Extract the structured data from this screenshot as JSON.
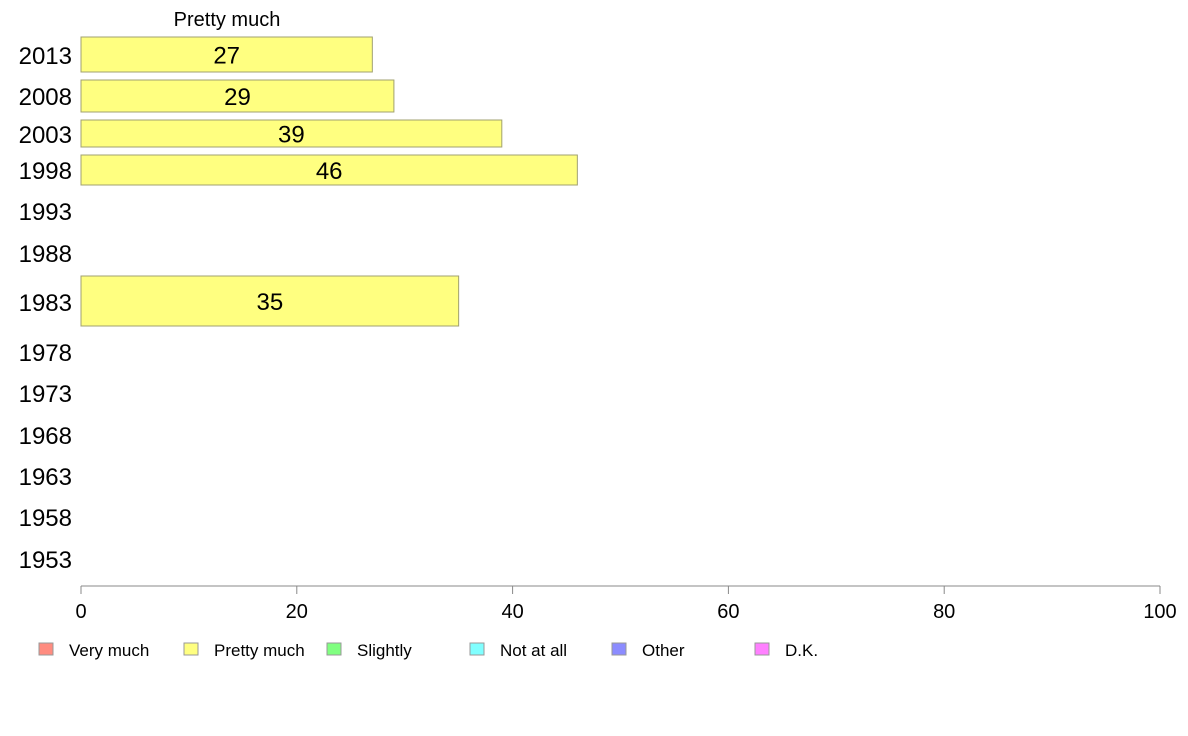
{
  "chart_data": {
    "type": "bar",
    "orientation": "horizontal",
    "title": "",
    "xlabel": "",
    "ylabel": "",
    "xlim": [
      0,
      100
    ],
    "x_ticks": [
      0,
      20,
      40,
      60,
      80,
      100
    ],
    "categories": [
      "2013",
      "2008",
      "2003",
      "1998",
      "1993",
      "1988",
      "1983",
      "1978",
      "1973",
      "1968",
      "1963",
      "1958",
      "1953"
    ],
    "series": [
      {
        "name": "Pretty much",
        "color": "#ffff80",
        "values": [
          27,
          29,
          39,
          46,
          null,
          null,
          35,
          null,
          null,
          null,
          null,
          null,
          null
        ]
      }
    ],
    "legend": {
      "placement": "bottom",
      "items": [
        {
          "label": "Very much",
          "color": "#ff8c80"
        },
        {
          "label": "Pretty much",
          "color": "#ffff80"
        },
        {
          "label": "Slightly",
          "color": "#80ff80"
        },
        {
          "label": "Not at all",
          "color": "#80ffff"
        },
        {
          "label": "Other",
          "color": "#8c8cff"
        },
        {
          "label": "D.K.",
          "color": "#ff80ff"
        }
      ]
    },
    "grid": false
  }
}
